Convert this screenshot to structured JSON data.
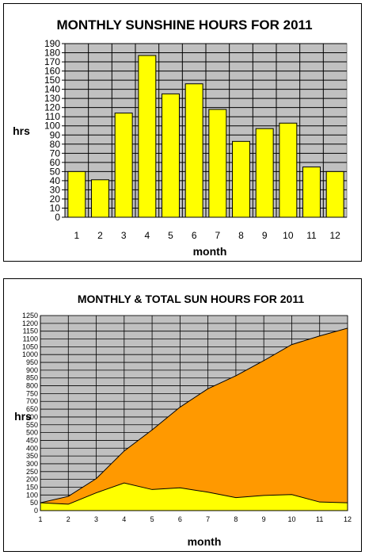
{
  "charts": [
    {
      "type": "bar",
      "title": "MONTHLY SUNSHINE HOURS FOR 2011",
      "xlabel": "month",
      "ylabel": "hrs",
      "categories": [
        "1",
        "2",
        "3",
        "4",
        "5",
        "6",
        "7",
        "8",
        "9",
        "10",
        "11",
        "12"
      ],
      "values": [
        50,
        41,
        114,
        177,
        135,
        146,
        118,
        83,
        97,
        103,
        55,
        50
      ],
      "ylim": [
        0,
        190
      ],
      "ytick_step": 10,
      "grid": true,
      "legend": "none",
      "colors": {
        "bar": "#ffff00",
        "plot_bg": "#c0c0c0"
      }
    },
    {
      "type": "area",
      "title": "MONTHLY & TOTAL SUN HOURS FOR 2011",
      "xlabel": "month",
      "ylabel": "hrs",
      "x": [
        "1",
        "2",
        "3",
        "4",
        "5",
        "6",
        "7",
        "8",
        "9",
        "10",
        "11",
        "12"
      ],
      "series": [
        {
          "values": [
            50,
            91,
            205,
            382,
            517,
            663,
            781,
            864,
            961,
            1064,
            1119,
            1169
          ],
          "color": "#ff9900"
        },
        {
          "values": [
            50,
            41,
            114,
            177,
            135,
            146,
            118,
            83,
            97,
            103,
            55,
            50
          ],
          "color": "#ffff00"
        }
      ],
      "ylim": [
        0,
        1250
      ],
      "ytick_step": 50,
      "grid": true,
      "legend": "none",
      "colors": {
        "plot_bg": "#c0c0c0"
      }
    }
  ]
}
